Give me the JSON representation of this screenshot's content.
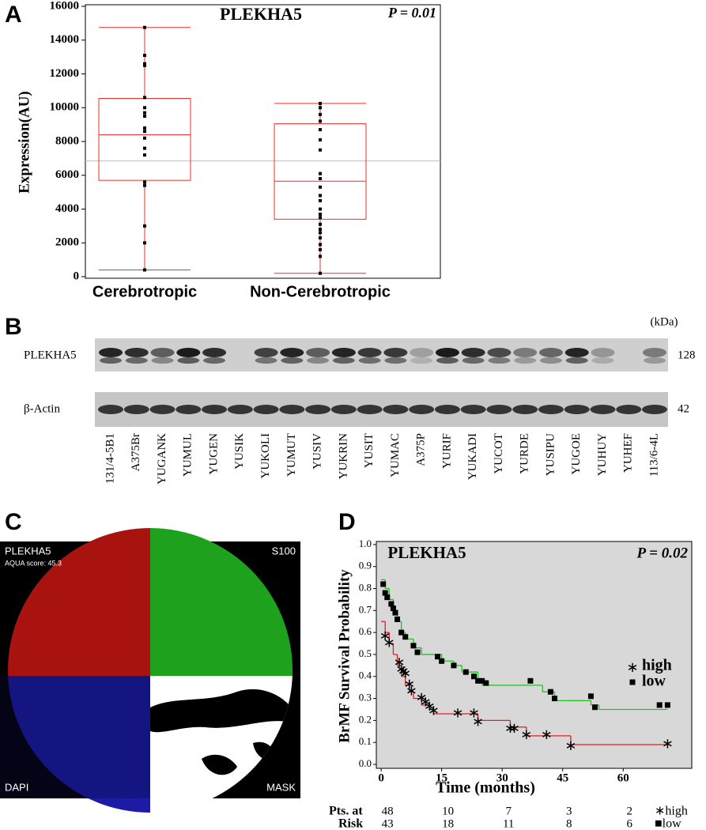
{
  "panel_labels": [
    "A",
    "B",
    "C",
    "D"
  ],
  "chart_data": [
    {
      "type": "box",
      "title": "PLEKHA5",
      "annotation": "P = 0.01",
      "y_label": "Expression(AU)",
      "categories": [
        "Cerebrotropic",
        "Non-Cerebrotropic"
      ],
      "color": "#e8312a",
      "ylim": [
        0,
        16000
      ],
      "yticks": [
        0,
        2000,
        4000,
        6000,
        8000,
        10000,
        12000,
        14000,
        16000
      ],
      "mean_line": 6850,
      "boxes": [
        {
          "low": 400,
          "q1": 5700,
          "median": 8400,
          "q3": 10550,
          "high": 14750,
          "points": [
            14750,
            13100,
            12600,
            12500,
            10600,
            10000,
            9700,
            9500,
            8800,
            8600,
            8200,
            7600,
            7200,
            5600,
            5400,
            3000,
            2000,
            400
          ]
        },
        {
          "low": 200,
          "q1": 3400,
          "median": 5650,
          "q3": 9050,
          "high": 10250,
          "points": [
            10250,
            10000,
            9600,
            9200,
            8700,
            8100,
            7500,
            6100,
            5800,
            5300,
            4800,
            4500,
            4000,
            3700,
            3500,
            3100,
            2800,
            2600,
            2300,
            1900,
            1600,
            1200,
            200
          ]
        }
      ]
    },
    {
      "type": "survival",
      "title": "PLEKHA5",
      "annotation": "P = 0.02",
      "x_label": "Time (months)",
      "y_label": "BrMF Survival Probability",
      "xlim": [
        -1.2,
        77
      ],
      "xticks": [
        0,
        15,
        30,
        45,
        60
      ],
      "ylim": [
        -0.018,
        1.014
      ],
      "yticks": [
        {
          "value": 0,
          "label": "0.0"
        },
        0.1,
        0.2,
        0.3,
        0.4,
        0.5,
        0.6,
        0.7,
        0.8,
        0.9,
        {
          "value": 1,
          "label": "1.0"
        }
      ],
      "series": [
        {
          "name": "high",
          "color": "#e02020",
          "marker": "asterisk",
          "x": [
            0,
            1,
            2,
            3,
            4,
            5,
            6,
            7,
            8,
            10,
            12,
            13,
            24,
            32,
            36,
            47,
            71
          ],
          "y": [
            0.65,
            0.6,
            0.55,
            0.5,
            0.45,
            0.4,
            0.36,
            0.33,
            0.3,
            0.27,
            0.25,
            0.23,
            0.2,
            0.17,
            0.13,
            0.09,
            0.09
          ],
          "censored_x": [
            1,
            2,
            4.5,
            5,
            5.5,
            6,
            7,
            7.5,
            10,
            11,
            12,
            13,
            19,
            23,
            24,
            32,
            33,
            36,
            41,
            47,
            71
          ],
          "censored_y": [
            0.59,
            0.56,
            0.47,
            0.44,
            0.43,
            0.42,
            0.37,
            0.34,
            0.31,
            0.29,
            0.27,
            0.25,
            0.24,
            0.24,
            0.2,
            0.17,
            0.17,
            0.14,
            0.14,
            0.09,
            0.1
          ]
        },
        {
          "name": "low",
          "color": "#22c022",
          "marker": "square",
          "x": [
            0,
            1,
            2,
            3,
            4,
            5,
            6,
            8,
            10,
            15,
            18,
            20,
            24,
            25,
            40,
            43,
            52,
            54,
            71
          ],
          "y": [
            0.84,
            0.8,
            0.75,
            0.7,
            0.65,
            0.6,
            0.57,
            0.53,
            0.5,
            0.47,
            0.45,
            0.42,
            0.38,
            0.36,
            0.33,
            0.29,
            0.27,
            0.25,
            0.25
          ],
          "censored_x": [
            0.5,
            1,
            1.5,
            2.5,
            3,
            3.5,
            4,
            5,
            6,
            8,
            9,
            14,
            15,
            18,
            21,
            23,
            24,
            25,
            26,
            37,
            42,
            43,
            52,
            53,
            69,
            71
          ],
          "censored_y": [
            0.82,
            0.78,
            0.76,
            0.73,
            0.71,
            0.69,
            0.66,
            0.6,
            0.58,
            0.54,
            0.51,
            0.49,
            0.47,
            0.45,
            0.42,
            0.4,
            0.38,
            0.38,
            0.37,
            0.38,
            0.33,
            0.3,
            0.31,
            0.26,
            0.27,
            0.27
          ]
        }
      ],
      "risk_table": {
        "header": [
          "Pts. at",
          "Risk"
        ],
        "rows": [
          {
            "label": "∗high",
            "values": [
              48,
              10,
              7,
              3,
              2
            ]
          },
          {
            "label": "■low",
            "values": [
              43,
              18,
              11,
              8,
              6
            ]
          }
        ]
      }
    }
  ],
  "blot": {
    "unit": "(kDa)",
    "rows": [
      {
        "label": "PLEKHA5",
        "size": "128"
      },
      {
        "label": "β-Actin",
        "size": "42"
      }
    ],
    "lanes": [
      "131/4-5B1",
      "A375Br",
      "YUGANK",
      "YUMUL",
      "YUGEN",
      "YUSIK",
      "YUKOLI",
      "YUMUT",
      "YUSIV",
      "YUKRIN",
      "YUSIT",
      "YUMAC",
      "A375P",
      "YURIF",
      "YUKADI",
      "YUCOT",
      "YURDE",
      "YUSIPU",
      "YUGOE",
      "YUHUY",
      "YUHEF",
      "113/6-4L"
    ]
  },
  "image_panel": {
    "top_left": "PLEKHA5",
    "score": "AQUA score: 45.3",
    "top_right": "S100",
    "bottom_left": "DAPI",
    "bottom_right": "MASK"
  }
}
